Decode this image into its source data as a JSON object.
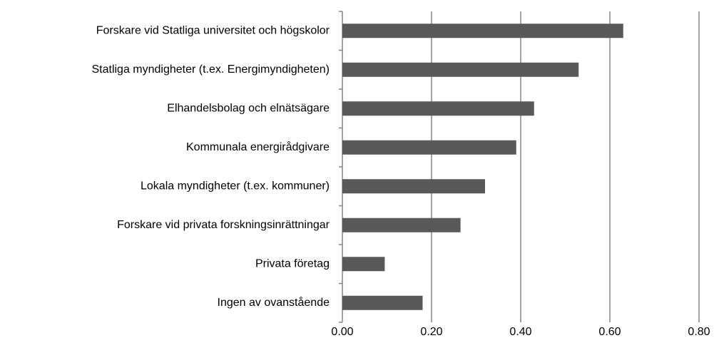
{
  "chart_data": {
    "type": "barh",
    "categories": [
      "Forskare vid Statliga universitet och högskolor",
      "Statliga myndigheter (t.ex. Energimyndigheten)",
      "Elhandelsbolag och elnätsägare",
      "Kommunala energirådgivare",
      "Lokala myndigheter (t.ex. kommuner)",
      "Forskare vid privata forskningsinrättningar",
      "Privata företag",
      "Ingen av ovanstående"
    ],
    "values": [
      0.63,
      0.53,
      0.43,
      0.39,
      0.32,
      0.265,
      0.095,
      0.18
    ],
    "color": "#595959",
    "xlim": [
      0,
      0.8
    ],
    "xticks": [
      {
        "value": 0,
        "label": "0.00"
      },
      {
        "value": 0.2,
        "label": "0.20"
      },
      {
        "value": 0.4,
        "label": "0.40"
      },
      {
        "value": 0.6,
        "label": "0.60"
      },
      {
        "value": 0.8,
        "label": "0.80"
      }
    ],
    "grid": true
  }
}
